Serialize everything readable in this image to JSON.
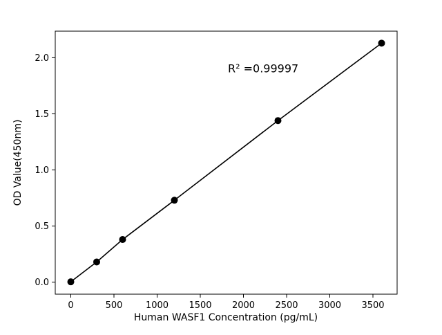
{
  "chart_data": {
    "type": "line",
    "title": "",
    "xlabel": "Human WASF1 Concentration (pg/mL)",
    "ylabel": "OD Value(450nm)",
    "x": [
      0,
      300,
      600,
      1200,
      2400,
      3600
    ],
    "y": [
      0.003,
      0.18,
      0.38,
      0.73,
      1.44,
      2.13
    ],
    "xlim": [
      -180,
      3780
    ],
    "ylim": [
      -0.107,
      2.237
    ],
    "xticks": [
      0,
      500,
      1000,
      1500,
      2000,
      2500,
      3000,
      3500
    ],
    "xtick_labels": [
      "0",
      "500",
      "1000",
      "1500",
      "2000",
      "2500",
      "3000",
      "3500"
    ],
    "yticks": [
      0.0,
      0.5,
      1.0,
      1.5,
      2.0
    ],
    "ytick_labels": [
      "0.0",
      "0.5",
      "1.0",
      "1.5",
      "2.0"
    ],
    "annotation": {
      "text": "R² =0.99997",
      "x": 1820,
      "y": 1.87
    },
    "grid": false,
    "legend": null,
    "line_color": "#000000",
    "marker": "circle",
    "marker_color": "#000000",
    "marker_radius": 5,
    "background": "#ffffff"
  }
}
